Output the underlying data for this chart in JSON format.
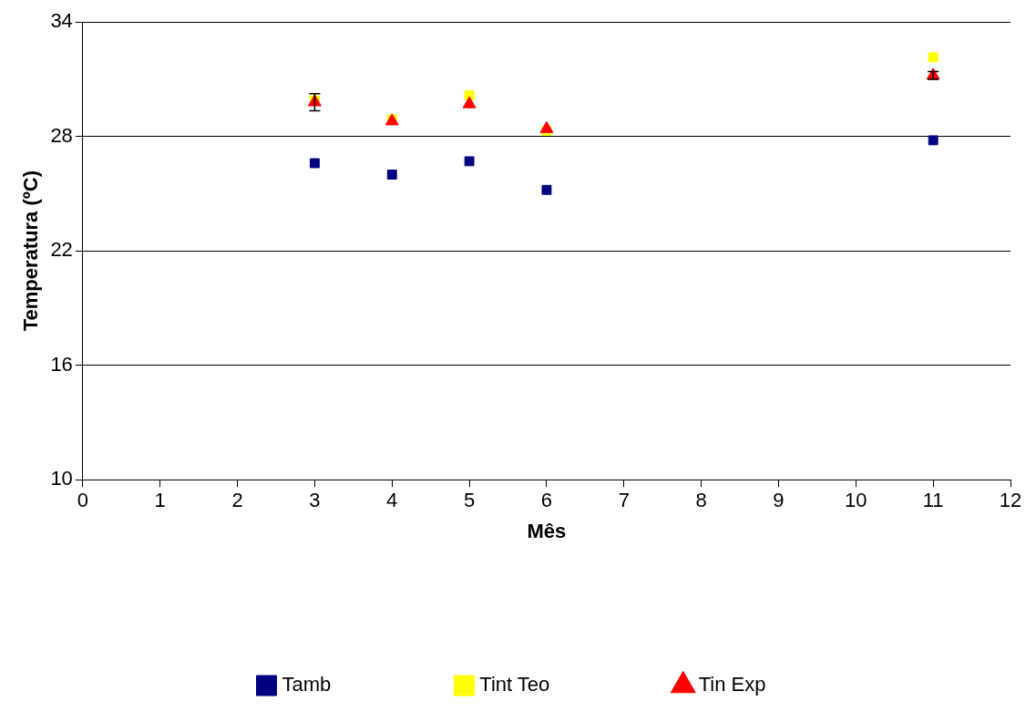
{
  "chart_data": {
    "type": "scatter",
    "xlabel": "Mês",
    "ylabel": "Temperatura (ºC)",
    "xlim": [
      0,
      12
    ],
    "xticks": [
      0,
      1,
      2,
      3,
      4,
      5,
      6,
      7,
      8,
      9,
      10,
      11,
      12
    ],
    "ylim": [
      10,
      34
    ],
    "yticks": [
      10,
      16,
      22,
      28,
      34
    ],
    "grid": "y",
    "legend": "bottom",
    "x": [
      3,
      4,
      5,
      6,
      11
    ],
    "series": [
      {
        "name": "Tamb",
        "color": "#000080",
        "marker": "square",
        "values": [
          26.6,
          26.0,
          26.7,
          25.2,
          27.8
        ]
      },
      {
        "name": "Tint Teo",
        "color": "#ffff00",
        "marker": "square",
        "values": [
          29.9,
          28.9,
          30.15,
          28.3,
          32.15
        ]
      },
      {
        "name": "Tin Exp",
        "color": "#ff0000",
        "marker": "triangle",
        "values": [
          29.8,
          28.8,
          29.7,
          28.4,
          31.2
        ],
        "errors": [
          0.45,
          null,
          null,
          null,
          0.2
        ]
      }
    ]
  }
}
